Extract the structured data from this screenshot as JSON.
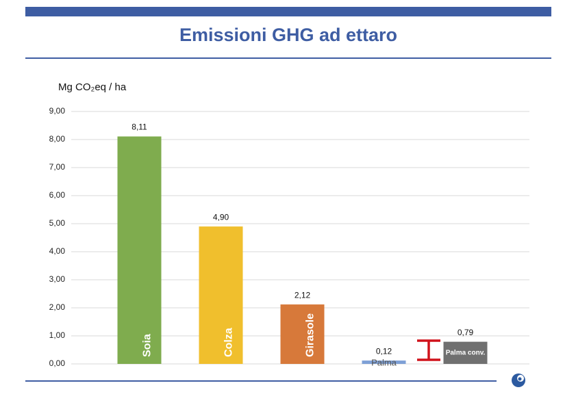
{
  "chart_data": {
    "type": "bar",
    "title": "Emissioni GHG ad ettaro",
    "y_label": "Mg CO₂eq / ha",
    "categories": [
      "Soia",
      "Colza",
      "Girasole",
      "Palma",
      "Palma conv."
    ],
    "values": [
      8.11,
      4.9,
      2.12,
      0.12,
      0.79
    ],
    "value_labels": [
      "8,11",
      "4,90",
      "2,12",
      "0,12",
      "0,79"
    ],
    "colors": [
      "#7fac4e",
      "#f0bf2d",
      "#d7793a",
      "#7ea0d6",
      "#707070"
    ],
    "ylim": [
      0,
      9
    ],
    "yticks": [
      {
        "value": 0,
        "label": "0,00"
      },
      {
        "value": 1,
        "label": "1,00"
      },
      {
        "value": 2,
        "label": "2,00"
      },
      {
        "value": 3,
        "label": "3,00"
      },
      {
        "value": 4,
        "label": "4,00"
      },
      {
        "value": 5,
        "label": "5,00"
      },
      {
        "value": 6,
        "label": "6,00"
      },
      {
        "value": 7,
        "label": "7,00"
      },
      {
        "value": 8,
        "label": "8,00"
      },
      {
        "value": 9,
        "label": "9,00"
      }
    ],
    "grid": true
  }
}
